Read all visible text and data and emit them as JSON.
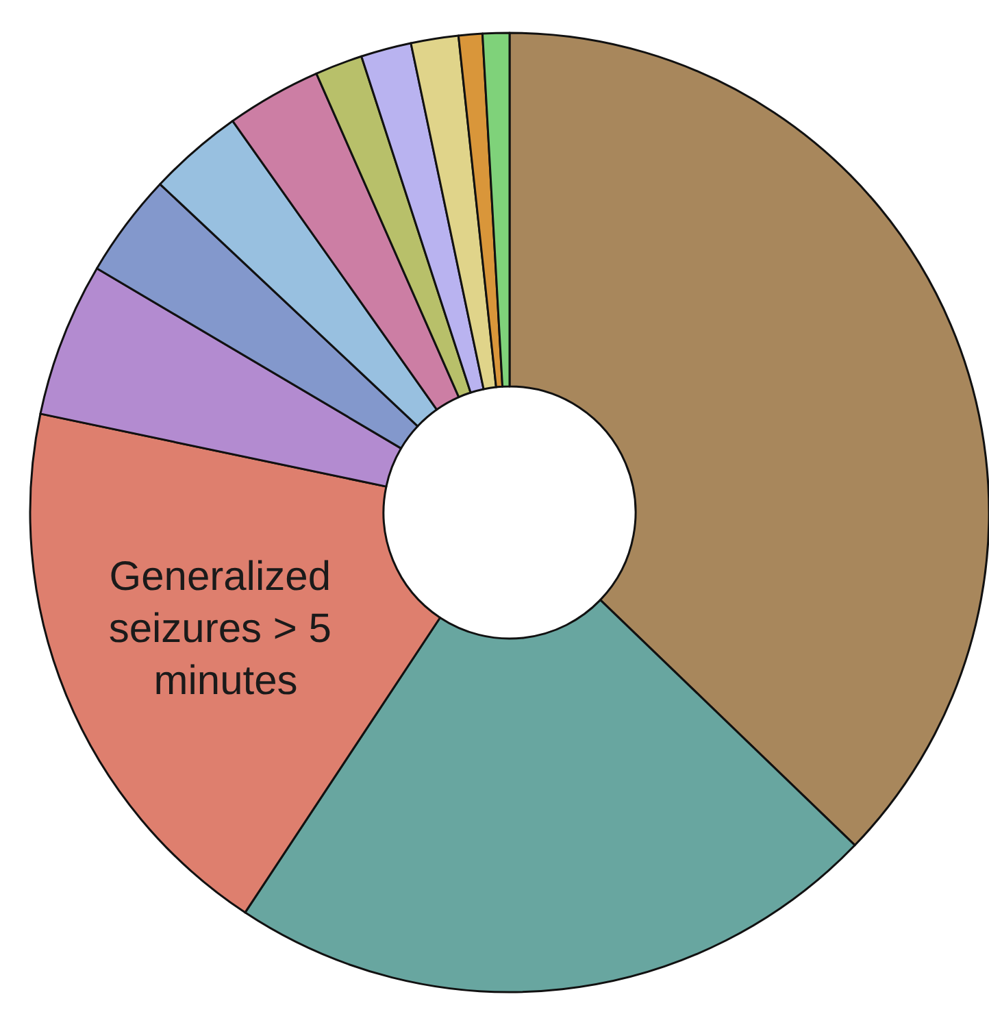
{
  "chart_data": {
    "type": "donut",
    "categories": [
      null,
      null,
      "Generalized seizures > 5 minutes",
      null,
      null,
      null,
      null,
      null,
      null,
      null,
      null,
      null
    ],
    "values": [
      37.2,
      22.1,
      19.0,
      5.2,
      3.5,
      3.2,
      3.2,
      1.6,
      1.7,
      1.6,
      0.8,
      0.9
    ],
    "colors": [
      "#a8875c",
      "#68a6a0",
      "#de7f6e",
      "#b38bd0",
      "#8398cc",
      "#98c0e0",
      "#cc7ea4",
      "#b8c06a",
      "#b9b3f0",
      "#e0d48a",
      "#d9963a",
      "#7fd27a"
    ],
    "legend": false
  }
}
